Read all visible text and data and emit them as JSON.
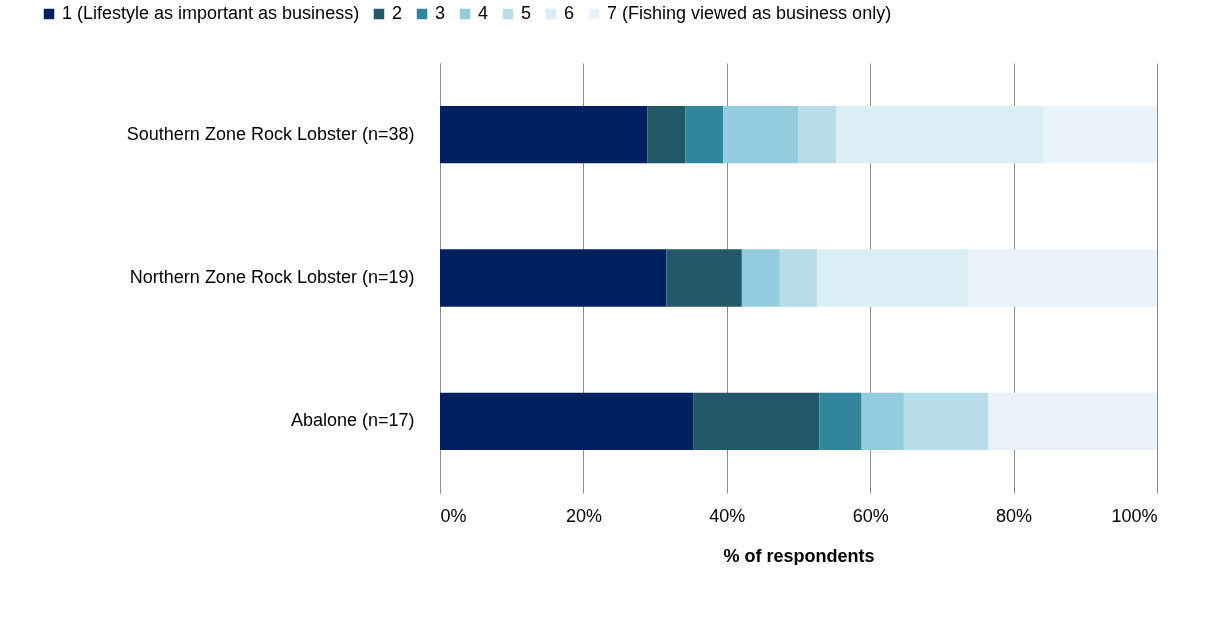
{
  "chart_data": {
    "type": "bar",
    "orientation": "horizontal",
    "stacked": true,
    "xlabel": "% of respondents",
    "categories": [
      "Southern Zone Rock Lobster (n=38)",
      "Northern Zone Rock Lobster (n=19)",
      "Abalone (n=17)"
    ],
    "series": [
      {
        "name": "1 (Lifestyle as important as business)",
        "color": "#002060",
        "values": [
          28.9,
          31.6,
          35.3
        ]
      },
      {
        "name": "2",
        "color": "#215968",
        "values": [
          5.3,
          10.5,
          17.6
        ]
      },
      {
        "name": "3",
        "color": "#31859c",
        "values": [
          5.3,
          0,
          5.9
        ]
      },
      {
        "name": "4",
        "color": "#93cddd",
        "values": [
          10.5,
          5.3,
          5.9
        ]
      },
      {
        "name": "5",
        "color": "#b7dee8",
        "values": [
          5.3,
          5.2,
          11.8
        ]
      },
      {
        "name": "6",
        "color": "#dbeef4",
        "values": [
          28.9,
          21.1,
          0
        ]
      },
      {
        "name": "7 (Fishing viewed as business only)",
        "color": "#ebf3fa",
        "values": [
          15.8,
          26.3,
          23.5
        ]
      }
    ],
    "xlim": [
      0,
      100
    ],
    "xticks": [
      {
        "value": 0,
        "label": "0%"
      },
      {
        "value": 20,
        "label": "20%"
      },
      {
        "value": 40,
        "label": "40%"
      },
      {
        "value": 60,
        "label": "60%"
      },
      {
        "value": 80,
        "label": "80%"
      },
      {
        "value": 100,
        "label": "100%"
      }
    ],
    "grid": "x",
    "legend": "top"
  }
}
